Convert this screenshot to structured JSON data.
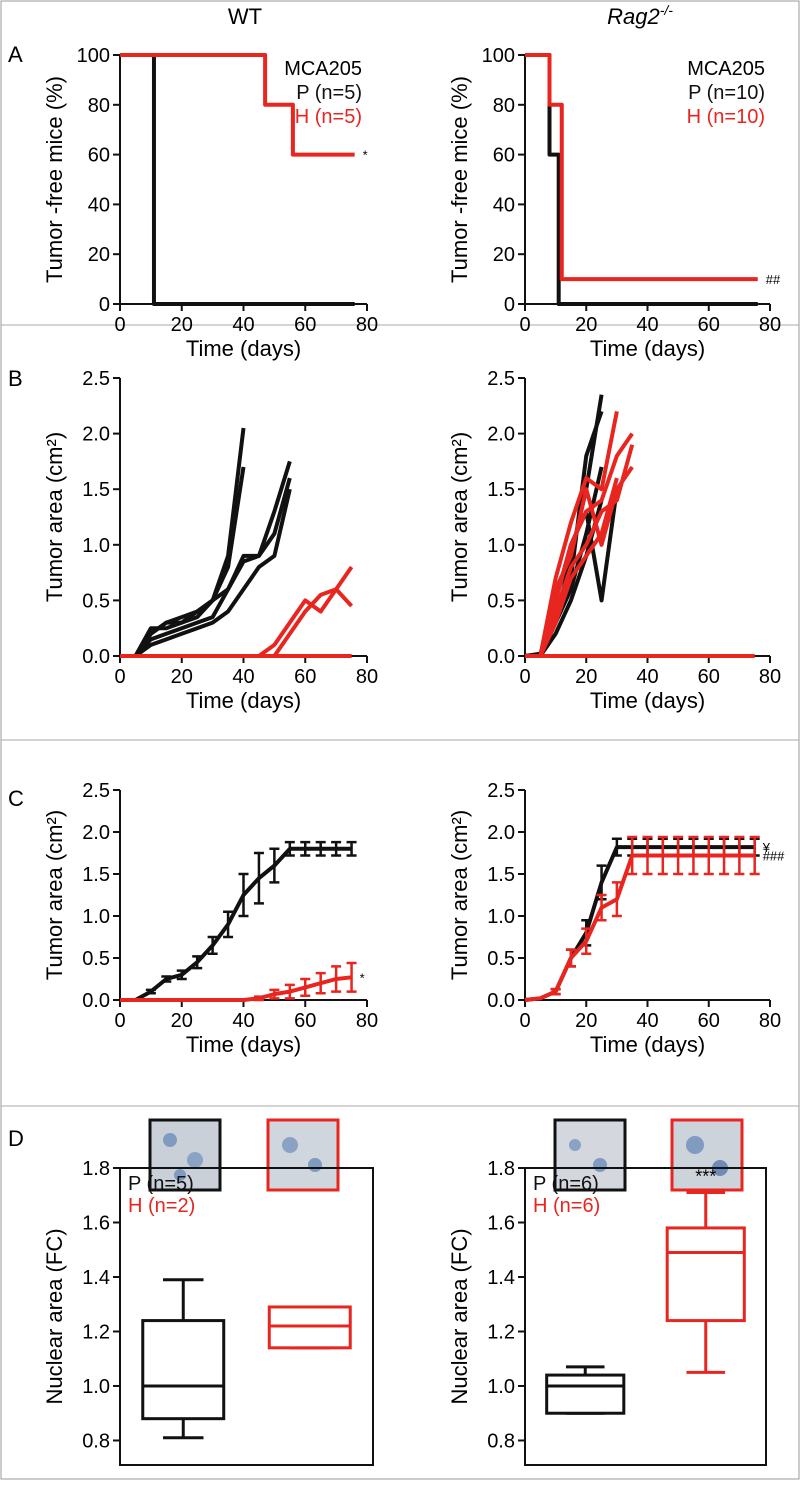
{
  "column_headers": [
    {
      "text": "WT"
    },
    {
      "text": "Rag2",
      "superscript": "-/-"
    }
  ],
  "panel_labels": [
    "A",
    "B",
    "C",
    "D"
  ],
  "chart_data": [
    {
      "type": "step",
      "xlabel": "Time (days)",
      "ylabel": "Tumor -free mice (%)",
      "xlim": [
        0,
        80
      ],
      "xticks": [
        0,
        20,
        40,
        60,
        80
      ],
      "ylim": [
        0,
        100
      ],
      "yticks": [
        0,
        20,
        40,
        60,
        80,
        100
      ],
      "legend_title": "MCA205",
      "series": [
        {
          "name": "P (n=5)",
          "color": "#111111",
          "x": [
            0,
            11,
            76
          ],
          "values": [
            100,
            0,
            0
          ]
        },
        {
          "name": "H (n=5)",
          "color": "#e8251f",
          "x": [
            0,
            47,
            56,
            76
          ],
          "values": [
            100,
            80,
            60,
            60
          ],
          "annotation": "*"
        }
      ]
    },
    {
      "type": "step",
      "xlabel": "Time (days)",
      "ylabel": "Tumor -free mice (%)",
      "xlim": [
        0,
        80
      ],
      "xticks": [
        0,
        20,
        40,
        60,
        80
      ],
      "ylim": [
        0,
        100
      ],
      "yticks": [
        0,
        20,
        40,
        60,
        80,
        100
      ],
      "legend_title": "MCA205",
      "series": [
        {
          "name": "P (n=10)",
          "color": "#111111",
          "x": [
            0,
            8,
            11,
            76
          ],
          "values": [
            100,
            60,
            0,
            0
          ]
        },
        {
          "name": "H (n=10)",
          "color": "#e8251f",
          "x": [
            0,
            8,
            12,
            76
          ],
          "values": [
            100,
            80,
            10,
            10
          ],
          "annotation": "##"
        }
      ]
    },
    {
      "type": "line",
      "xlabel": "Time (days)",
      "ylabel": "Tumor area (cm²)",
      "xlim": [
        0,
        80
      ],
      "xticks": [
        0,
        20,
        40,
        60,
        80
      ],
      "ylim": [
        0,
        2.5
      ],
      "yticks": [
        {
          "value": 0,
          "label": "0.0"
        },
        0.5,
        {
          "value": 1,
          "label": "1.0"
        },
        1.5,
        {
          "value": 2,
          "label": "2.0"
        },
        2.5
      ],
      "x": [
        0,
        5,
        10,
        15,
        20,
        25,
        30,
        35,
        40,
        45,
        50,
        55,
        60,
        65,
        70,
        75
      ],
      "series": [
        {
          "color": "#111111",
          "values": [
            0,
            0,
            0.2,
            0.3,
            0.3,
            0.4,
            0.5,
            0.9,
            2.05,
            null,
            null,
            null,
            null,
            null,
            null,
            null
          ]
        },
        {
          "color": "#111111",
          "values": [
            0,
            0,
            0.25,
            0.25,
            0.3,
            0.35,
            0.5,
            0.8,
            1.7,
            null,
            null,
            null,
            null,
            null,
            null,
            null
          ]
        },
        {
          "color": "#111111",
          "values": [
            0,
            0,
            0.2,
            0.3,
            0.35,
            0.4,
            0.5,
            0.6,
            0.9,
            0.9,
            1.1,
            1.6,
            null,
            null,
            null,
            null
          ]
        },
        {
          "color": "#111111",
          "values": [
            0,
            0,
            0.15,
            0.2,
            0.25,
            0.3,
            0.35,
            0.6,
            0.85,
            0.9,
            1.3,
            1.75,
            null,
            null,
            null,
            null
          ]
        },
        {
          "color": "#111111",
          "values": [
            0,
            0,
            0.1,
            0.15,
            0.2,
            0.25,
            0.3,
            0.4,
            0.6,
            0.8,
            0.9,
            1.5,
            null,
            null,
            null,
            null
          ]
        },
        {
          "color": "#e8251f",
          "values": [
            0,
            0,
            0,
            0,
            0,
            0,
            0,
            0,
            0,
            0,
            0,
            0,
            0,
            0,
            0,
            0
          ]
        },
        {
          "color": "#e8251f",
          "values": [
            null,
            null,
            null,
            null,
            null,
            null,
            null,
            null,
            null,
            0,
            0.1,
            0.3,
            0.5,
            0.4,
            0.6,
            0.8
          ]
        },
        {
          "color": "#e8251f",
          "values": [
            null,
            null,
            null,
            null,
            null,
            null,
            null,
            null,
            null,
            null,
            0,
            0.2,
            0.4,
            0.55,
            0.6,
            0.45
          ]
        }
      ]
    },
    {
      "type": "line",
      "xlabel": "Time (days)",
      "ylabel": "Tumor area (cm²)",
      "xlim": [
        0,
        80
      ],
      "xticks": [
        0,
        20,
        40,
        60,
        80
      ],
      "ylim": [
        0,
        2.5
      ],
      "yticks": [
        {
          "value": 0,
          "label": "0.0"
        },
        0.5,
        {
          "value": 1,
          "label": "1.0"
        },
        1.5,
        {
          "value": 2,
          "label": "2.0"
        },
        2.5
      ],
      "x": [
        0,
        5,
        10,
        15,
        20,
        25,
        30,
        35,
        40,
        45,
        50,
        55,
        60,
        65,
        70,
        75
      ],
      "series": [
        {
          "color": "#111111",
          "values": [
            0,
            0,
            0.3,
            0.9,
            1.5,
            2.35,
            null,
            null,
            null,
            null,
            null,
            null,
            null,
            null,
            null,
            null
          ]
        },
        {
          "color": "#111111",
          "values": [
            0,
            0.02,
            0.4,
            0.7,
            1.8,
            2.2,
            null,
            null,
            null,
            null,
            null,
            null,
            null,
            null,
            null,
            null
          ]
        },
        {
          "color": "#111111",
          "values": [
            0,
            0.01,
            0.5,
            1.0,
            1.3,
            0.5,
            1.5,
            null,
            null,
            null,
            null,
            null,
            null,
            null,
            null,
            null
          ]
        },
        {
          "color": "#111111",
          "values": [
            0,
            0,
            0.3,
            0.6,
            1.1,
            1.7,
            null,
            null,
            null,
            null,
            null,
            null,
            null,
            null,
            null,
            null
          ]
        },
        {
          "color": "#111111",
          "values": [
            0,
            0,
            0.2,
            0.5,
            0.9,
            1.4,
            null,
            null,
            null,
            null,
            null,
            null,
            null,
            null,
            null,
            null
          ]
        },
        {
          "color": "#e8251f",
          "values": [
            0,
            0,
            0.7,
            1.2,
            1.6,
            1.5,
            2.2,
            null,
            null,
            null,
            null,
            null,
            null,
            null,
            null,
            null
          ]
        },
        {
          "color": "#e8251f",
          "values": [
            0,
            0,
            0.5,
            1.0,
            1.3,
            1.4,
            1.8,
            2.0,
            null,
            null,
            null,
            null,
            null,
            null,
            null,
            null
          ]
        },
        {
          "color": "#e8251f",
          "values": [
            0,
            0,
            0.6,
            0.9,
            1.5,
            1.0,
            1.5,
            1.7,
            null,
            null,
            null,
            null,
            null,
            null,
            null,
            null
          ]
        },
        {
          "color": "#e8251f",
          "values": [
            0,
            0,
            0.4,
            0.8,
            1.0,
            1.3,
            1.4,
            1.9,
            null,
            null,
            null,
            null,
            null,
            null,
            null,
            null
          ]
        },
        {
          "color": "#e8251f",
          "values": [
            0,
            0,
            0.3,
            0.7,
            0.9,
            1.1,
            1.6,
            null,
            null,
            null,
            null,
            null,
            null,
            null,
            null,
            null
          ]
        },
        {
          "color": "#e8251f",
          "values": [
            0,
            0,
            0,
            0,
            0,
            0,
            0,
            0,
            0,
            0,
            0,
            0,
            0,
            0,
            0,
            0
          ]
        }
      ]
    },
    {
      "type": "errorline",
      "xlabel": "Time (days)",
      "ylabel": "Tumor area (cm²)",
      "xlim": [
        0,
        80
      ],
      "xticks": [
        0,
        20,
        40,
        60,
        80
      ],
      "ylim": [
        0,
        2.5
      ],
      "yticks": [
        {
          "value": 0,
          "label": "0.0"
        },
        0.5,
        {
          "value": 1,
          "label": "1.0"
        },
        1.5,
        {
          "value": 2,
          "label": "2.0"
        },
        2.5
      ],
      "x": [
        0,
        5,
        10,
        15,
        20,
        25,
        30,
        35,
        40,
        45,
        50,
        55,
        60,
        65,
        70,
        75
      ],
      "series": [
        {
          "color": "#111111",
          "values": [
            0,
            0,
            0.1,
            0.25,
            0.3,
            0.45,
            0.65,
            0.9,
            1.25,
            1.45,
            1.6,
            1.8,
            1.8,
            1.8,
            1.8,
            1.8
          ],
          "errors": [
            0,
            0,
            0.02,
            0.03,
            0.05,
            0.07,
            0.1,
            0.15,
            0.25,
            0.3,
            0.2,
            0.08,
            0.08,
            0.08,
            0.08,
            0.08
          ]
        },
        {
          "color": "#e8251f",
          "values": [
            0,
            0,
            0,
            0,
            0,
            0,
            0,
            0,
            0,
            0.02,
            0.07,
            0.1,
            0.15,
            0.2,
            0.25,
            0.27
          ],
          "errors": [
            0,
            0,
            0,
            0,
            0,
            0,
            0,
            0,
            0,
            0.02,
            0.05,
            0.08,
            0.1,
            0.12,
            0.15,
            0.17
          ],
          "annotation": "*"
        }
      ]
    },
    {
      "type": "errorline",
      "xlabel": "Time (days)",
      "ylabel": "Tumor area (cm²)",
      "xlim": [
        0,
        80
      ],
      "xticks": [
        0,
        20,
        40,
        60,
        80
      ],
      "ylim": [
        0,
        2.5
      ],
      "yticks": [
        {
          "value": 0,
          "label": "0.0"
        },
        0.5,
        {
          "value": 1,
          "label": "1.0"
        },
        1.5,
        {
          "value": 2,
          "label": "2.0"
        },
        2.5
      ],
      "x": [
        0,
        5,
        10,
        15,
        20,
        25,
        30,
        35,
        40,
        45,
        50,
        55,
        60,
        65,
        70,
        75
      ],
      "series": [
        {
          "color": "#111111",
          "values": [
            0,
            0.02,
            0.1,
            0.5,
            0.8,
            1.4,
            1.82,
            1.82,
            1.82,
            1.82,
            1.82,
            1.82,
            1.82,
            1.82,
            1.82,
            1.82
          ],
          "errors": [
            0,
            0,
            0.03,
            0.1,
            0.15,
            0.2,
            0.1,
            0.1,
            0.1,
            0.1,
            0.1,
            0.1,
            0.1,
            0.1,
            0.1,
            0.1
          ],
          "annotation": "¥"
        },
        {
          "color": "#e8251f",
          "values": [
            0,
            0.02,
            0.1,
            0.5,
            0.7,
            1.1,
            1.2,
            1.72,
            1.72,
            1.72,
            1.72,
            1.72,
            1.72,
            1.72,
            1.72,
            1.72
          ],
          "errors": [
            0,
            0,
            0.03,
            0.1,
            0.15,
            0.15,
            0.2,
            0.22,
            0.22,
            0.22,
            0.22,
            0.22,
            0.22,
            0.22,
            0.22,
            0.22
          ],
          "annotation": "###"
        }
      ]
    },
    {
      "type": "box",
      "ylabel": "Nuclear area (FC)",
      "ylim": [
        0.71,
        1.8
      ],
      "yticks": [
        0.8,
        {
          "value": 1,
          "label": "1.0"
        },
        1.2,
        1.4,
        1.6,
        1.8
      ],
      "series": [
        {
          "name": "P (n=5)",
          "color": "#111111",
          "values": [
            0.81,
            0.88,
            1.0,
            1.24,
            1.39
          ]
        },
        {
          "name": "H (n=2)",
          "color": "#e8251f",
          "values": [
            1.14,
            1.14,
            1.22,
            1.29,
            1.29
          ]
        }
      ]
    },
    {
      "type": "box",
      "ylabel": "Nuclear area (FC)",
      "ylim": [
        0.71,
        1.8
      ],
      "yticks": [
        0.8,
        {
          "value": 1,
          "label": "1.0"
        },
        1.2,
        1.4,
        1.6,
        1.8
      ],
      "series": [
        {
          "name": "P (n=6)",
          "color": "#111111",
          "values": [
            0.9,
            0.9,
            1.0,
            1.04,
            1.07
          ]
        },
        {
          "name": "H (n=6)",
          "color": "#e8251f",
          "values": [
            1.05,
            1.24,
            1.49,
            1.58,
            1.71
          ],
          "annotation": "***"
        }
      ]
    }
  ]
}
